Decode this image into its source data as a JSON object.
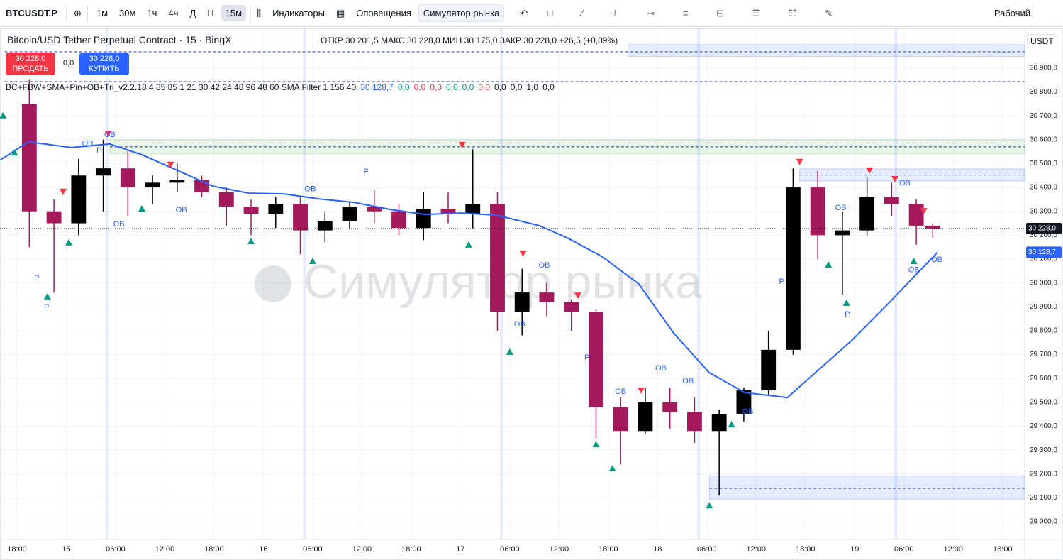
{
  "toolbar": {
    "symbol": "BTCUSDT.P",
    "timeframes": [
      "1м",
      "30м",
      "1ч",
      "4ч",
      "Д",
      "Н",
      "15м"
    ],
    "indicators": "Индикаторы",
    "alerts": "Оповещения",
    "replay": "Симулятор рынка",
    "layout": "Рабочий"
  },
  "legend": {
    "title": "Bitcoin/USD Tether Perpetual Contract · 15 · BingX",
    "open_label": "ОТКР",
    "open": "30 201,5",
    "high_label": "МАКС",
    "high": "30 228,0",
    "low_label": "МИН",
    "low": "30 175,0",
    "close_label": "ЗАКР",
    "close": "30 228,0",
    "change": "+26,5 (+0,09%)"
  },
  "trade": {
    "sell_price": "30 228,0",
    "sell": "ПРОДАТЬ",
    "spread": "0,0",
    "buy_price": "30 228,0",
    "buy": "КУПИТЬ"
  },
  "indicator": {
    "name": "BC+FBW+SMA+Pin+OB+Tri_v2.2.18 4 85 85 1 21 30 42 24 48 96 48 60 SMA Filter 1 156 40",
    "values": [
      "30 128,7",
      "0,0",
      "0,0",
      "0,0",
      "0,0",
      "0,0",
      "0,0",
      "0,0",
      "0,0",
      "1,0",
      "0,0"
    ],
    "colors": [
      "#2962ff",
      "#089981",
      "#f23645",
      "#f23645",
      "#089981",
      "#089981",
      "#f23645",
      "#131722",
      "#131722",
      "#131722",
      "#131722"
    ]
  },
  "currency": "USDT",
  "watermark": "Симулятор рынка",
  "chart_data": {
    "type": "candlestick",
    "x": [
      1.5,
      4.5,
      7.5,
      10.5,
      13.5,
      16.5,
      19.5,
      22.5,
      25.5,
      28.5,
      31.5,
      34.5,
      37.5,
      40.5,
      43.5,
      46.5,
      49.5,
      52.5,
      55.5,
      58.5,
      61.5,
      64.5,
      67.5,
      70.5,
      73.5,
      76.5,
      79.5,
      82.5,
      85.5,
      88.5,
      91.5,
      94.5,
      97.5,
      100.5,
      103.5,
      106.5,
      109.5,
      111.5
    ],
    "open": [
      30750,
      30300,
      30250,
      30450,
      30480,
      30400,
      30420,
      30430,
      30380,
      30320,
      30290,
      30330,
      30220,
      30260,
      30320,
      30300,
      30230,
      30310,
      30290,
      30330,
      29880,
      29960,
      29920,
      29880,
      29480,
      29380,
      29500,
      29460,
      29380,
      29450,
      29550,
      29720,
      30400,
      30200,
      30220,
      30360,
      30330,
      30240
    ],
    "high": [
      30850,
      30350,
      30520,
      30600,
      30560,
      30450,
      30500,
      30450,
      30400,
      30350,
      30360,
      30360,
      30300,
      30340,
      30390,
      30330,
      30380,
      30380,
      30560,
      30380,
      30060,
      30000,
      29930,
      29890,
      29520,
      29560,
      29560,
      29520,
      29470,
      29560,
      29800,
      30480,
      30470,
      30300,
      30440,
      30420,
      30350,
      30250
    ],
    "low": [
      30150,
      29960,
      30200,
      30300,
      30280,
      30330,
      30380,
      30360,
      30240,
      30200,
      30230,
      30120,
      30170,
      30230,
      30250,
      30200,
      30180,
      30250,
      30230,
      29800,
      29780,
      29860,
      29800,
      29350,
      29240,
      29370,
      29390,
      29330,
      29110,
      29420,
      29530,
      29700,
      30100,
      29950,
      30200,
      30280,
      30160,
      30190
    ],
    "close": [
      30300,
      30250,
      30450,
      30480,
      30400,
      30420,
      30430,
      30380,
      30320,
      30290,
      30330,
      30220,
      30260,
      30320,
      30300,
      30230,
      30310,
      30290,
      30330,
      29880,
      29960,
      29920,
      29880,
      29480,
      29380,
      29500,
      29460,
      29380,
      29450,
      29550,
      29720,
      30400,
      30200,
      30220,
      30360,
      30330,
      30240,
      30228
    ],
    "up_color": "#000000",
    "down_color": "#a3195b",
    "sma": {
      "color": "#2962ff",
      "x": [
        -2,
        1.4,
        6.6,
        11.3,
        15.2,
        19.5,
        23.8,
        28.2,
        32.5,
        36.8,
        41.1,
        45.4,
        49.7,
        54.1,
        58.4,
        63.6,
        67,
        71.3,
        75.7,
        80,
        84.3,
        88.6,
        93.8,
        97.2,
        101.6,
        105.9,
        110.2,
        112.1
      ],
      "values": [
        30516,
        30591,
        30567,
        30582,
        30537,
        30472,
        30406,
        30376,
        30373,
        30352,
        30337,
        30308,
        30287,
        30293,
        30284,
        30240,
        30189,
        30109,
        29996,
        29788,
        29624,
        29541,
        29520,
        29624,
        29758,
        29907,
        30061,
        30128.7
      ]
    },
    "last_price": {
      "value": 30228,
      "label": "30 228,0"
    },
    "sma_last": {
      "value": 30128.7,
      "label": "30 128,7"
    },
    "xlim": [
      -2.07,
      122.7
    ],
    "ylim": [
      28926,
      31066
    ],
    "xticks": [
      {
        "value": 0,
        "label": "18:00"
      },
      {
        "value": 6,
        "label": "15"
      },
      {
        "value": 12,
        "label": "06:00"
      },
      {
        "value": 18,
        "label": "12:00"
      },
      {
        "value": 24,
        "label": "18:00"
      },
      {
        "value": 30,
        "label": "16"
      },
      {
        "value": 36,
        "label": "06:00"
      },
      {
        "value": 42,
        "label": "12:00"
      },
      {
        "value": 48,
        "label": "18:00"
      },
      {
        "value": 54,
        "label": "17"
      },
      {
        "value": 60,
        "label": "06:00"
      },
      {
        "value": 66,
        "label": "12:00"
      },
      {
        "value": 72,
        "label": "18:00"
      },
      {
        "value": 78,
        "label": "18"
      },
      {
        "value": 84,
        "label": "06:00"
      },
      {
        "value": 90,
        "label": "12:00"
      },
      {
        "value": 96,
        "label": "18:00"
      },
      {
        "value": 102,
        "label": "19"
      },
      {
        "value": 108,
        "label": "06:00"
      },
      {
        "value": 114,
        "label": "12:00"
      },
      {
        "value": 120,
        "label": "18:00"
      }
    ],
    "yticks": [
      {
        "value": 29000,
        "label": "29 000,0"
      },
      {
        "value": 29100,
        "label": "29 100,0"
      },
      {
        "value": 29200,
        "label": "29 200,0"
      },
      {
        "value": 29300,
        "label": "29 300,0"
      },
      {
        "value": 29400,
        "label": "29 400,0"
      },
      {
        "value": 29500,
        "label": "29 500,0"
      },
      {
        "value": 29600,
        "label": "29 600,0"
      },
      {
        "value": 29700,
        "label": "29 700,0"
      },
      {
        "value": 29800,
        "label": "29 800,0"
      },
      {
        "value": 29900,
        "label": "29 900,0"
      },
      {
        "value": 30000,
        "label": "30 000,0"
      },
      {
        "value": 30100,
        "label": "30 100,0"
      },
      {
        "value": 30200,
        "label": "30 200,0"
      },
      {
        "value": 30300,
        "label": "30 300,0"
      },
      {
        "value": 30400,
        "label": "30 400,0"
      },
      {
        "value": 30500,
        "label": "30 500,0"
      },
      {
        "value": 30600,
        "label": "30 600,0"
      },
      {
        "value": 30700,
        "label": "30 700,0"
      },
      {
        "value": 30800,
        "label": "30 800,0"
      },
      {
        "value": 30900,
        "label": "30 900,0"
      }
    ],
    "grid": true,
    "session_lines": [
      11,
      35,
      59,
      83,
      107
    ],
    "zones": [
      {
        "x": [
          74.4,
          122.7
        ],
        "y": [
          30948,
          30998
        ],
        "color": "#2962ff"
      },
      {
        "x": [
          11.3,
          122.7
        ],
        "y": [
          30540,
          30600
        ],
        "color": "#4caf50"
      },
      {
        "x": [
          95.3,
          122.7
        ],
        "y": [
          30427,
          30478
        ],
        "color": "#2962ff"
      },
      {
        "x": [
          84.3,
          122.7
        ],
        "y": [
          29095,
          29193
        ],
        "color": "#2962ff"
      }
    ],
    "levels": [
      {
        "x": -1.5,
        "value": 30968
      },
      {
        "x": -1.5,
        "value": 30843
      },
      {
        "x": 11.3,
        "value": 30570
      },
      {
        "x": 95.3,
        "value": 30452
      },
      {
        "x": 84.3,
        "value": 29140
      }
    ],
    "annotations": [
      {
        "x": 8.6,
        "y": 30582,
        "text": "OB"
      },
      {
        "x": 10,
        "y": 30555,
        "text": "P"
      },
      {
        "x": 11.3,
        "y": 30620,
        "text": "OB"
      },
      {
        "x": 2.4,
        "y": 30020,
        "text": "P"
      },
      {
        "x": 3.6,
        "y": 29898,
        "text": "P"
      },
      {
        "x": 12.4,
        "y": 30246,
        "text": "OB"
      },
      {
        "x": 20,
        "y": 30305,
        "text": "OB"
      },
      {
        "x": 35.7,
        "y": 30392,
        "text": "OB"
      },
      {
        "x": 42.5,
        "y": 30466,
        "text": "P"
      },
      {
        "x": 64.2,
        "y": 30073,
        "text": "OB"
      },
      {
        "x": 61.2,
        "y": 29826,
        "text": "OB"
      },
      {
        "x": 69.4,
        "y": 29687,
        "text": "P"
      },
      {
        "x": 73.5,
        "y": 29544,
        "text": "OB"
      },
      {
        "x": 78.4,
        "y": 29642,
        "text": "OB"
      },
      {
        "x": 81.7,
        "y": 29589,
        "text": "OB"
      },
      {
        "x": 89,
        "y": 29461,
        "text": "OB"
      },
      {
        "x": 93.1,
        "y": 30005,
        "text": "P"
      },
      {
        "x": 100.3,
        "y": 30314,
        "text": "OB"
      },
      {
        "x": 101.1,
        "y": 29868,
        "text": "P"
      },
      {
        "x": 108.1,
        "y": 30418,
        "text": "OB"
      },
      {
        "x": 109.2,
        "y": 30053,
        "text": "OB"
      },
      {
        "x": 112,
        "y": 30097,
        "text": "OB"
      }
    ],
    "signals": [
      {
        "x": -1.7,
        "y": 30701,
        "dir": "up"
      },
      {
        "x": -0.3,
        "y": 30546,
        "dir": "up"
      },
      {
        "x": 3.7,
        "y": 29943,
        "dir": "up"
      },
      {
        "x": 6.3,
        "y": 30169,
        "dir": "up"
      },
      {
        "x": 15.2,
        "y": 30311,
        "dir": "up"
      },
      {
        "x": 28.5,
        "y": 30174,
        "dir": "up"
      },
      {
        "x": 36,
        "y": 30091,
        "dir": "up"
      },
      {
        "x": 55,
        "y": 30160,
        "dir": "up"
      },
      {
        "x": 60,
        "y": 29711,
        "dir": "up"
      },
      {
        "x": 70.5,
        "y": 29324,
        "dir": "up"
      },
      {
        "x": 72.5,
        "y": 29223,
        "dir": "up"
      },
      {
        "x": 84.3,
        "y": 29068,
        "dir": "up"
      },
      {
        "x": 87,
        "y": 29407,
        "dir": "up"
      },
      {
        "x": 98.8,
        "y": 30076,
        "dir": "up"
      },
      {
        "x": 101,
        "y": 29916,
        "dir": "up"
      },
      {
        "x": 109.2,
        "y": 30091,
        "dir": "up"
      },
      {
        "x": 5.6,
        "y": 30383,
        "dir": "down"
      },
      {
        "x": 11.1,
        "y": 30626,
        "dir": "down"
      },
      {
        "x": 18.7,
        "y": 30496,
        "dir": "down"
      },
      {
        "x": 54.2,
        "y": 30579,
        "dir": "down"
      },
      {
        "x": 61.6,
        "y": 30124,
        "dir": "down"
      },
      {
        "x": 68.3,
        "y": 29948,
        "dir": "down"
      },
      {
        "x": 76,
        "y": 29550,
        "dir": "down"
      },
      {
        "x": 95.3,
        "y": 30508,
        "dir": "down"
      },
      {
        "x": 103.8,
        "y": 30472,
        "dir": "down"
      },
      {
        "x": 106.9,
        "y": 30436,
        "dir": "down"
      },
      {
        "x": 110.4,
        "y": 30302,
        "dir": "down"
      }
    ]
  }
}
